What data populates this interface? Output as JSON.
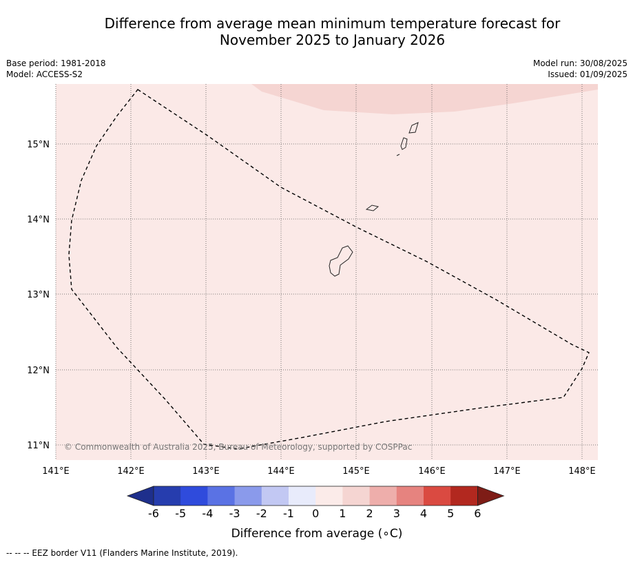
{
  "title_line1": "Difference from average mean minimum temperature forecast for",
  "title_line2": "November 2025 to January 2026",
  "meta_left": {
    "base_period": "Base period: 1981-2018",
    "model": "Model: ACCESS-S2"
  },
  "meta_right": {
    "model_run": "Model run: 30/08/2025",
    "issued": "Issued: 01/09/2025"
  },
  "map": {
    "lat_labels": [
      "15°N",
      "14°N",
      "13°N",
      "12°N",
      "11°N"
    ],
    "lon_labels": [
      "141°E",
      "142°E",
      "143°E",
      "144°E",
      "145°E",
      "146°E",
      "147°E",
      "148°E"
    ],
    "copyright": "© Commonwealth of Australia 2025, Bureau of Meteorology, supported by COSPPac",
    "background_class_color": "#fbe9e7",
    "warmer_class_color": "#f5d5d2"
  },
  "colorbar": {
    "label": "Difference from average (∘C)",
    "ticks": [
      "-6",
      "-5",
      "-4",
      "-3",
      "-2",
      "-1",
      "0",
      "1",
      "2",
      "3",
      "4",
      "5",
      "6"
    ],
    "colors": [
      "#1e2f8c",
      "#263dae",
      "#2f4bdc",
      "#5a72e4",
      "#8a9aeb",
      "#c2c8f3",
      "#e8ebfb",
      "#fbebe9",
      "#f5d5d2",
      "#eeaeab",
      "#e6837f",
      "#da4a41",
      "#b2281f",
      "#7e1c16"
    ]
  },
  "footnote": "--  --  -- EEZ border V11 (Flanders Marine Institute, 2019)."
}
